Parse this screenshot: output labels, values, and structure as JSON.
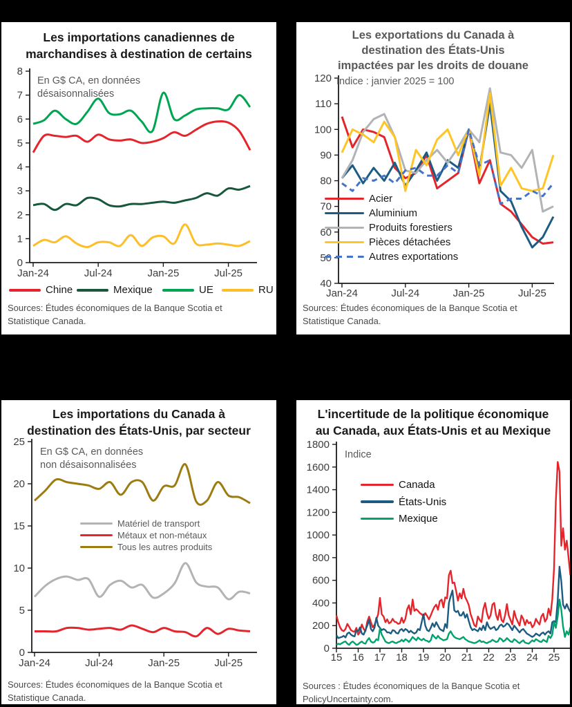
{
  "page": {
    "background": "#000000",
    "panel_background": "#ffffff"
  },
  "chart_data": [
    {
      "id": "tl",
      "type": "line",
      "title_lines": [
        "Les importations canadiennes de",
        "marchandises à destination de certains"
      ],
      "annotation_lines": [
        "En G$ CA, en données",
        "désaisonnalisées"
      ],
      "sources_lines": [
        "Sources: Études économiques de la Banque Scotia et",
        "Statistique Canada."
      ],
      "x_tick_labels": [
        "Jan-24",
        "Jul-24",
        "Jan-25",
        "Jul-25"
      ],
      "x_tick_index": [
        0,
        6,
        12,
        18
      ],
      "ylim": [
        0,
        8
      ],
      "y_step": 1,
      "grid": false,
      "legend_position": "bottom",
      "smooth": true,
      "series": [
        {
          "name": "Chine",
          "color": "#e4262c",
          "style": "solid",
          "values": [
            4.6,
            5.3,
            5.3,
            5.25,
            5.3,
            5.05,
            5.35,
            5.15,
            5.1,
            5.15,
            5.0,
            5.05,
            5.2,
            5.45,
            5.3,
            5.55,
            5.8,
            5.9,
            5.85,
            5.5,
            4.7
          ]
        },
        {
          "name": "Mexique",
          "color": "#17573b",
          "style": "solid",
          "values": [
            2.4,
            2.45,
            2.2,
            2.45,
            2.4,
            2.7,
            2.65,
            2.4,
            2.35,
            2.45,
            2.45,
            2.5,
            2.55,
            2.5,
            2.6,
            2.7,
            2.9,
            2.8,
            3.1,
            3.05,
            3.2
          ]
        },
        {
          "name": "UE",
          "color": "#00a551",
          "style": "solid",
          "values": [
            5.8,
            5.95,
            6.35,
            6.0,
            5.8,
            6.3,
            6.85,
            6.25,
            6.2,
            6.35,
            5.9,
            5.5,
            7.1,
            6.0,
            6.15,
            6.4,
            6.45,
            6.45,
            6.4,
            7.0,
            6.5
          ]
        },
        {
          "name": "RU",
          "color": "#fdbe27",
          "style": "solid",
          "values": [
            0.7,
            0.95,
            0.85,
            1.1,
            0.8,
            0.65,
            0.85,
            0.85,
            0.7,
            1.15,
            0.7,
            1.05,
            1.1,
            0.8,
            1.6,
            0.8,
            0.75,
            0.8,
            0.75,
            0.7,
            0.9
          ]
        }
      ]
    },
    {
      "id": "tr",
      "type": "line",
      "title_lines": [
        "Les exportations du Canada à",
        "destination des États-Unis",
        "impactées par les droits de douane"
      ],
      "annotation_lines": [
        "Indice : janvier 2025 = 100"
      ],
      "sources_lines": [
        "Sources: Études économiques de la Banque Scotia et",
        "Statistique Canada."
      ],
      "x_tick_labels": [
        "Jan-24",
        "Jul-24",
        "Jan-25",
        "Jul-25"
      ],
      "x_tick_index": [
        0,
        6,
        12,
        18
      ],
      "ylim": [
        40,
        120
      ],
      "y_step": 10,
      "grid": false,
      "legend_position": "inside-left",
      "smooth": false,
      "series": [
        {
          "name": "Acier",
          "color": "#e4262c",
          "style": "solid",
          "values": [
            105,
            93,
            100,
            99,
            97,
            85,
            81,
            83,
            90,
            77,
            80,
            83,
            100,
            79,
            88,
            71,
            68,
            63,
            58,
            55.5,
            56
          ]
        },
        {
          "name": "Aluminium",
          "color": "#1d5c82",
          "style": "solid",
          "values": [
            81,
            86,
            79,
            85,
            80,
            87,
            78,
            84,
            91,
            80,
            88,
            85,
            100,
            84,
            110,
            76,
            72,
            62,
            54,
            58,
            66
          ]
        },
        {
          "name": "Produits forestiers",
          "color": "#b1b3b5",
          "style": "solid",
          "values": [
            81,
            88,
            99,
            104,
            106,
            97,
            84,
            83,
            88,
            92,
            87,
            93,
            100,
            95,
            116,
            91,
            90,
            85,
            92,
            68,
            70
          ]
        },
        {
          "name": "Pièces détachées",
          "color": "#ffc425",
          "style": "solid",
          "values": [
            91,
            100,
            98,
            95,
            103,
            97,
            76,
            92,
            86,
            96,
            100,
            90,
            100,
            82,
            114,
            78,
            85,
            77,
            76,
            77,
            90
          ]
        },
        {
          "name": "Autres exportations",
          "color": "#4673c8",
          "style": "dashed",
          "values": [
            79,
            76,
            81,
            80,
            82,
            79,
            84,
            85,
            82,
            82,
            86,
            83,
            100,
            86,
            88,
            71,
            73,
            73,
            76,
            74,
            79
          ]
        }
      ]
    },
    {
      "id": "bl",
      "type": "line",
      "title_lines": [
        "Les importations du Canada à",
        "destination des États-Unis, par secteur"
      ],
      "annotation_lines": [
        "En G$ CA, en données",
        "non désaisonnalisées"
      ],
      "sources_lines": [
        "Sources: Études économiques de la Banque Scotia et",
        "Statistique Canada."
      ],
      "x_tick_labels": [
        "Jan-24",
        "Jul-24",
        "Jan-25",
        "Jul-25"
      ],
      "x_tick_index": [
        0,
        6,
        12,
        18
      ],
      "ylim": [
        0,
        25
      ],
      "y_step": 5,
      "grid": false,
      "legend_position": "inside-center",
      "smooth": true,
      "series": [
        {
          "name": "Matériel de transport",
          "color": "#b1b3b5",
          "style": "solid",
          "values": [
            6.6,
            7.9,
            8.7,
            9.0,
            8.6,
            8.7,
            6.6,
            8.0,
            8.5,
            7.7,
            8.0,
            6.5,
            7.0,
            8.2,
            10.6,
            8.3,
            7.8,
            7.7,
            6.3,
            7.2,
            7.0
          ]
        },
        {
          "name": "Métaux et non-métaux",
          "color": "#e4262c",
          "style": "solid",
          "values": [
            2.5,
            2.5,
            2.5,
            2.9,
            2.9,
            2.7,
            2.8,
            2.9,
            2.7,
            3.2,
            2.8,
            2.4,
            2.9,
            2.5,
            2.4,
            1.9,
            2.9,
            2.2,
            2.8,
            2.6,
            2.5
          ]
        },
        {
          "name": "Tous les autres produits",
          "color": "#9c7c10",
          "style": "solid",
          "values": [
            18,
            19.2,
            20.5,
            20.2,
            20.0,
            19.8,
            19.4,
            20.2,
            18.7,
            20.2,
            20.2,
            18.0,
            19.7,
            19.8,
            22.3,
            17.9,
            18.0,
            20.2,
            18.6,
            18.4,
            17.7
          ]
        }
      ]
    },
    {
      "id": "br",
      "type": "line",
      "title_lines": [
        "L'incertitude de la politique économique",
        "au Canada, aux États-Unis et au Mexique"
      ],
      "annotation_lines": [
        "Indice"
      ],
      "sources_lines": [
        "Sources : Études économiques de la Banque Scotia et",
        "PolicyUncertainty.com."
      ],
      "x_tick_labels": [
        "15",
        "16",
        "17",
        "18",
        "19",
        "20",
        "21",
        "22",
        "23",
        "24",
        "25"
      ],
      "x_tick_index": [
        0,
        12,
        24,
        36,
        48,
        60,
        72,
        84,
        96,
        108,
        120
      ],
      "ylim": [
        0,
        1800
      ],
      "y_step": 200,
      "grid": false,
      "legend_position": "inside-upper-left",
      "smooth": false,
      "series": [
        {
          "name": "Canada",
          "color": "#e4262c",
          "style": "solid",
          "values": [
            290,
            230,
            185,
            160,
            150,
            170,
            215,
            190,
            160,
            150,
            145,
            180,
            120,
            145,
            210,
            170,
            150,
            235,
            280,
            230,
            185,
            205,
            255,
            300,
            445,
            300,
            280,
            230,
            255,
            220,
            230,
            260,
            235,
            230,
            215,
            220,
            270,
            225,
            260,
            345,
            380,
            300,
            430,
            330,
            345,
            330,
            310,
            300,
            280,
            310,
            285,
            255,
            290,
            330,
            365,
            385,
            340,
            415,
            430,
            360,
            450,
            440,
            645,
            685,
            575,
            580,
            505,
            420,
            485,
            440,
            525,
            450,
            420,
            380,
            300,
            255,
            205,
            190,
            280,
            250,
            230,
            345,
            400,
            310,
            260,
            290,
            385,
            400,
            295,
            250,
            340,
            250,
            230,
            290,
            390,
            290,
            250,
            210,
            330,
            270,
            235,
            200,
            290,
            260,
            205,
            250,
            220,
            230,
            185,
            205,
            260,
            230,
            210,
            280,
            305,
            235,
            260,
            350,
            290,
            430,
            705,
            1300,
            1645,
            1560,
            905,
            1060,
            870,
            950,
            800,
            645
          ]
        },
        {
          "name": "États-Unis",
          "color": "#1d5c82",
          "style": "solid",
          "values": [
            115,
            90,
            95,
            100,
            110,
            95,
            130,
            140,
            120,
            110,
            105,
            160,
            150,
            185,
            130,
            120,
            160,
            200,
            250,
            170,
            150,
            180,
            270,
            200,
            180,
            160,
            170,
            160,
            140,
            140,
            130,
            160,
            155,
            135,
            130,
            160,
            170,
            150,
            170,
            160,
            140,
            155,
            140,
            130,
            140,
            170,
            160,
            230,
            300,
            200,
            160,
            150,
            180,
            220,
            190,
            230,
            200,
            170,
            160,
            150,
            215,
            180,
            400,
            460,
            510,
            335,
            320,
            330,
            290,
            290,
            320,
            270,
            300,
            240,
            185,
            160,
            170,
            160,
            150,
            180,
            160,
            200,
            160,
            230,
            190,
            170,
            180,
            190,
            160,
            170,
            200,
            210,
            190,
            200,
            220,
            210,
            185,
            160,
            200,
            180,
            160,
            140,
            160,
            170,
            150,
            130,
            120,
            110,
            100,
            110,
            130,
            120,
            110,
            130,
            140,
            120,
            140,
            150,
            130,
            230,
            240,
            230,
            420,
            720,
            590,
            385,
            350,
            390,
            350,
            320
          ]
        },
        {
          "name": "Mexique",
          "color": "#00a36d",
          "style": "solid",
          "values": [
            30,
            40,
            35,
            45,
            55,
            60,
            40,
            30,
            50,
            60,
            45,
            30,
            35,
            50,
            60,
            45,
            40,
            70,
            90,
            60,
            50,
            55,
            80,
            70,
            175,
            120,
            90,
            60,
            50,
            45,
            55,
            60,
            50,
            45,
            55,
            60,
            75,
            60,
            80,
            70,
            55,
            75,
            100,
            85,
            70,
            95,
            80,
            70,
            85,
            70,
            65,
            55,
            70,
            120,
            100,
            85,
            110,
            90,
            80,
            70,
            75,
            80,
            130,
            150,
            120,
            100,
            90,
            85,
            80,
            90,
            100,
            80,
            70,
            60,
            55,
            50,
            45,
            50,
            60,
            70,
            55,
            60,
            50,
            45,
            55,
            60,
            75,
            65,
            55,
            60,
            90,
            80,
            60,
            70,
            90,
            75,
            60,
            55,
            80,
            70,
            55,
            45,
            60,
            70,
            50,
            45,
            40,
            55,
            70,
            60,
            80,
            70,
            60,
            55,
            75,
            65,
            55,
            110,
            90,
            120,
            230,
            180,
            280,
            430,
            340,
            190,
            100,
            150,
            120,
            185
          ]
        }
      ]
    }
  ]
}
